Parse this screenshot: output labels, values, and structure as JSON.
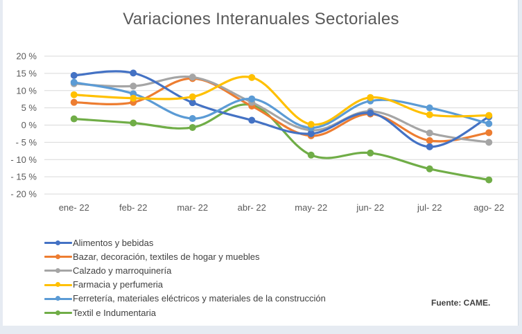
{
  "chart_data": {
    "type": "line",
    "title": "Variaciones Interanuales Sectoriales",
    "xlabel": "",
    "ylabel": "",
    "categories": [
      "ene- 22",
      "feb- 22",
      "mar- 22",
      "abr- 22",
      "may- 22",
      "jun- 22",
      "jul- 22",
      "ago- 22"
    ],
    "ylim": [
      -20,
      20
    ],
    "yticks": [
      20,
      15,
      10,
      5,
      0,
      -5,
      -10,
      -15,
      -20
    ],
    "ytick_labels": [
      "20 %",
      "15 %",
      "10 %",
      "5 %",
      "0 %",
      "- 5 %",
      "- 10 %",
      "- 15 %",
      "- 20 %"
    ],
    "grid": true,
    "legend_position": "bottom-left",
    "smooth": true,
    "series": [
      {
        "name": "Alimentos y bebidas",
        "color": "#4472c4",
        "values": [
          14.4,
          15.1,
          6.5,
          1.4,
          -2.5,
          3.5,
          -6.3,
          2.4
        ]
      },
      {
        "name": "Bazar, decoración, textiles de hogar y muebles",
        "color": "#ed7d31",
        "values": [
          6.6,
          6.6,
          13.5,
          5.5,
          -3.1,
          3.2,
          -4.5,
          -2.2
        ]
      },
      {
        "name": "Calzado y marroquinería",
        "color": "#a5a5a5",
        "values": [
          12.0,
          11.3,
          13.9,
          6.6,
          -1.5,
          4.0,
          -2.3,
          -5.0
        ]
      },
      {
        "name": "Farmacia y perfumeria",
        "color": "#ffc000",
        "values": [
          8.8,
          7.8,
          8.2,
          13.8,
          0.2,
          8.0,
          3.0,
          2.8
        ]
      },
      {
        "name": "Ferretería, materiales eléctricos y materiales de la construcción",
        "color": "#5b9bd5",
        "values": [
          12.4,
          9.1,
          1.9,
          7.6,
          -0.8,
          7.0,
          5.0,
          0.4
        ]
      },
      {
        "name": "Textil e Indumentaria",
        "color": "#70ad47",
        "values": [
          1.8,
          0.6,
          -0.7,
          5.8,
          -8.7,
          -8.1,
          -12.7,
          -15.9
        ]
      }
    ],
    "annotation": "Fuente: CAME."
  }
}
